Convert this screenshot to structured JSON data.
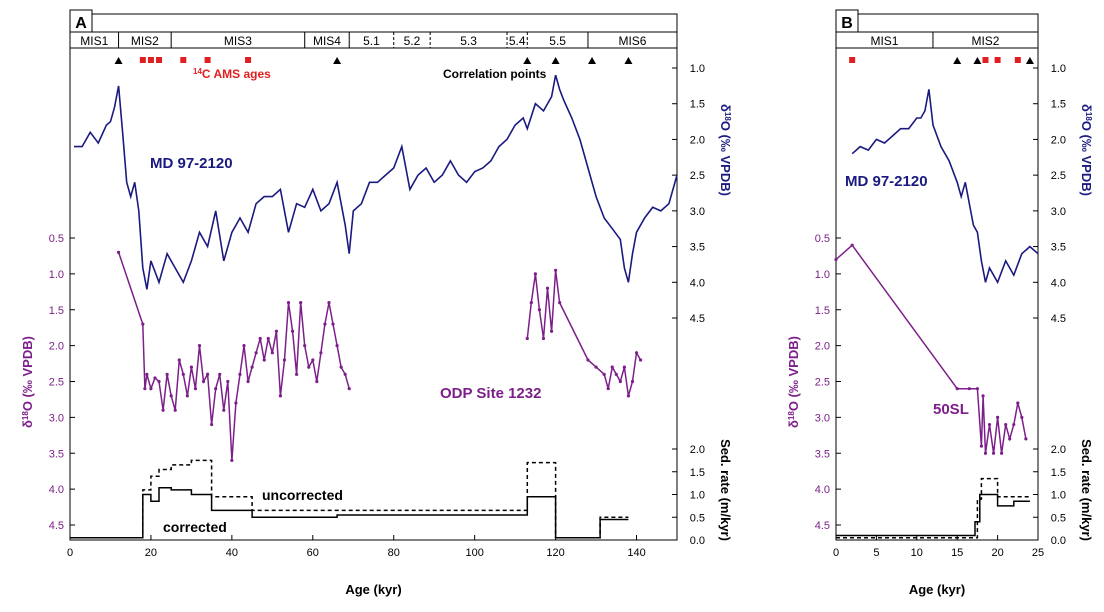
{
  "chart_data": [
    {
      "type": "line",
      "panel": "A",
      "xlabel": "Age (kyr)",
      "xlim": [
        0,
        150
      ],
      "x_ticks": [
        "0",
        "20",
        "40",
        "60",
        "80",
        "100",
        "120",
        "140"
      ],
      "stages": [
        {
          "label": "MIS1",
          "from": 0,
          "to": 12
        },
        {
          "label": "MIS2",
          "from": 12,
          "to": 25
        },
        {
          "label": "MIS3",
          "from": 25,
          "to": 58
        },
        {
          "label": "MIS4",
          "from": 58,
          "to": 69
        },
        {
          "label": "5.1",
          "from": 69,
          "to": 80
        },
        {
          "label": "5.2",
          "from": 80,
          "to": 89
        },
        {
          "label": "5.3",
          "from": 89,
          "to": 108
        },
        {
          "label": "5.4",
          "from": 108,
          "to": 113
        },
        {
          "label": "5.5",
          "from": 113,
          "to": 128
        },
        {
          "label": "MIS6",
          "from": 128,
          "to": 150
        }
      ],
      "c14_ages": [
        18,
        20,
        22,
        28,
        34,
        44
      ],
      "correlation_points": [
        12,
        66,
        113,
        120,
        129,
        138
      ],
      "annotation_c14": "C AMS ages",
      "annotation_c14_sup": "14",
      "annotation_corr": "Correlation points",
      "right_axis_top": {
        "label_pre": "δ",
        "label_sup": "18",
        "label_post": "O (‰ VPDB)",
        "ylim": [
          1.0,
          4.5
        ],
        "ticks": [
          "1.0",
          "1.5",
          "2.0",
          "2.5",
          "3.0",
          "3.5",
          "4.0",
          "4.5"
        ]
      },
      "left_axis": {
        "label_pre": "δ",
        "label_sup": "18",
        "label_post": "O (‰ VPDB)",
        "ylim": [
          0.5,
          4.5
        ],
        "ticks": [
          "0.5",
          "1.0",
          "1.5",
          "2.0",
          "2.5",
          "3.0",
          "3.5",
          "4.0",
          "4.5"
        ]
      },
      "right_axis_bottom": {
        "label": "Sed. rate (m/kyr)",
        "ylim": [
          0.0,
          2.0
        ],
        "ticks": [
          "0.0",
          "0.5",
          "1.0",
          "1.5",
          "2.0"
        ]
      },
      "series": [
        {
          "name": "MD 97-2120",
          "axis": "right_top",
          "color": "#1a1a80",
          "x": [
            1,
            3,
            5,
            7,
            9,
            10,
            11,
            12,
            13,
            14,
            15,
            16,
            17,
            18,
            19,
            20,
            22,
            24,
            26,
            28,
            30,
            32,
            34,
            36,
            38,
            40,
            42,
            44,
            46,
            48,
            50,
            52,
            54,
            56,
            58,
            60,
            62,
            64,
            66,
            68,
            69,
            70,
            72,
            74,
            76,
            78,
            80,
            82,
            84,
            86,
            88,
            90,
            92,
            94,
            96,
            98,
            100,
            102,
            104,
            106,
            108,
            110,
            112,
            113,
            115,
            117,
            119,
            120,
            121,
            122,
            124,
            126,
            128,
            130,
            132,
            134,
            136,
            137,
            138,
            139,
            140,
            142,
            144,
            146,
            148,
            150
          ],
          "values": [
            2.1,
            2.1,
            1.9,
            2.05,
            1.8,
            1.75,
            1.55,
            1.25,
            1.9,
            2.6,
            2.8,
            2.6,
            3.0,
            3.8,
            4.1,
            3.7,
            4.0,
            3.6,
            3.8,
            4.0,
            3.7,
            3.3,
            3.5,
            3.0,
            3.7,
            3.3,
            3.1,
            3.3,
            2.9,
            2.8,
            2.8,
            2.7,
            3.3,
            2.9,
            2.95,
            2.7,
            3.0,
            2.9,
            2.6,
            3.2,
            3.6,
            3.0,
            2.9,
            2.6,
            2.6,
            2.5,
            2.4,
            2.1,
            2.7,
            2.5,
            2.4,
            2.6,
            2.5,
            2.3,
            2.5,
            2.6,
            2.45,
            2.4,
            2.3,
            2.1,
            2.0,
            1.8,
            1.7,
            1.85,
            1.5,
            1.6,
            1.4,
            1.1,
            1.3,
            1.45,
            1.7,
            2.0,
            2.4,
            2.8,
            3.1,
            3.25,
            3.4,
            3.8,
            4.0,
            3.6,
            3.3,
            3.1,
            2.95,
            3.0,
            2.9,
            2.5
          ]
        },
        {
          "name": "ODP Site 1232",
          "axis": "left",
          "color": "#7d1f8a",
          "x": [
            12,
            18,
            18.5,
            19,
            20,
            21,
            22,
            23,
            24,
            25,
            26,
            27,
            28,
            29,
            30,
            31,
            32,
            33,
            34,
            35,
            36,
            37,
            38,
            39,
            40,
            41,
            42,
            43,
            44,
            45,
            46,
            47,
            48,
            49,
            50,
            51,
            52,
            53,
            54,
            55,
            56,
            57,
            58,
            59,
            60,
            61,
            62,
            63,
            64,
            65,
            66,
            67,
            68,
            69
          ],
          "values": [
            0.7,
            1.7,
            2.6,
            2.4,
            2.6,
            2.45,
            2.5,
            2.9,
            2.4,
            2.7,
            2.9,
            2.2,
            2.4,
            2.7,
            2.3,
            2.6,
            2.0,
            2.5,
            2.4,
            3.1,
            2.6,
            2.4,
            2.9,
            2.5,
            3.6,
            2.8,
            2.4,
            2.0,
            2.5,
            2.3,
            2.1,
            1.9,
            2.2,
            1.9,
            2.1,
            1.8,
            2.7,
            2.2,
            1.4,
            1.8,
            2.4,
            1.4,
            2.0,
            2.3,
            2.2,
            2.5,
            2.1,
            1.7,
            1.4,
            1.7,
            2.0,
            2.3,
            2.4,
            2.6
          ]
        },
        {
          "name": "ODP Site 1232 (late)",
          "axis": "left",
          "color": "#7d1f8a",
          "x": [
            113,
            114,
            115,
            116,
            117,
            118,
            119,
            120,
            121,
            128,
            130,
            132,
            133,
            134,
            135,
            136,
            137,
            138,
            139,
            140,
            141
          ],
          "values": [
            1.9,
            1.4,
            1.0,
            1.5,
            1.9,
            1.2,
            1.8,
            0.95,
            1.4,
            2.2,
            2.3,
            2.4,
            2.6,
            2.3,
            2.4,
            2.5,
            2.3,
            2.7,
            2.5,
            2.1,
            2.2
          ]
        },
        {
          "name": "uncorrected",
          "axis": "right_bottom",
          "color": "#000000",
          "dashed": true,
          "x": [
            0,
            18,
            18,
            20,
            20,
            22,
            22,
            25,
            25,
            30,
            30,
            35,
            35,
            45,
            45,
            113,
            113,
            120,
            120,
            131,
            131,
            138
          ],
          "values": [
            0.05,
            0.05,
            1.1,
            1.1,
            1.4,
            1.4,
            1.55,
            1.55,
            1.65,
            1.65,
            1.75,
            1.75,
            0.95,
            0.95,
            0.65,
            0.65,
            1.7,
            1.7,
            0.05,
            0.05,
            0.5,
            0.5
          ]
        },
        {
          "name": "corrected",
          "axis": "right_bottom",
          "color": "#000000",
          "dashed": false,
          "x": [
            0,
            18,
            18,
            20,
            20,
            22,
            22,
            25,
            25,
            30,
            30,
            35,
            35,
            45,
            45,
            66,
            66,
            113,
            113,
            120,
            120,
            131,
            131,
            138
          ],
          "values": [
            0.05,
            0.05,
            1.0,
            1.0,
            0.85,
            0.85,
            1.15,
            1.15,
            1.1,
            1.1,
            1.0,
            1.0,
            0.65,
            0.65,
            0.5,
            0.5,
            0.55,
            0.55,
            0.95,
            0.95,
            0.05,
            0.05,
            0.45,
            0.45
          ]
        }
      ],
      "labels": {
        "md": "MD 97-2120",
        "odp": "ODP Site 1232",
        "uncorrected": "uncorrected",
        "corrected": "corrected"
      }
    },
    {
      "type": "line",
      "panel": "B",
      "xlabel": "Age (kyr)",
      "xlim": [
        0,
        25
      ],
      "x_ticks": [
        "0",
        "5",
        "10",
        "15",
        "20",
        "25"
      ],
      "stages": [
        {
          "label": "MIS1",
          "from": 0,
          "to": 12
        },
        {
          "label": "MIS2",
          "from": 12,
          "to": 25
        }
      ],
      "c14_ages": [
        2,
        18.5,
        20,
        22.5
      ],
      "correlation_points": [
        15,
        17.5,
        24
      ],
      "right_axis_top": {
        "label_pre": "δ",
        "label_sup": "18",
        "label_post": "O (‰ VPDB)",
        "ylim": [
          1.0,
          4.5
        ],
        "ticks": [
          "1.0",
          "1.5",
          "2.0",
          "2.5",
          "3.0",
          "3.5",
          "4.0",
          "4.5"
        ]
      },
      "left_axis": {
        "label_pre": "δ",
        "label_sup": "18",
        "label_post": "O (‰ VPDB)",
        "ylim": [
          0.5,
          4.5
        ],
        "ticks": [
          "0.5",
          "1.0",
          "1.5",
          "2.0",
          "2.5",
          "3.0",
          "3.5",
          "4.0",
          "4.5"
        ]
      },
      "right_axis_bottom": {
        "label": "Sed. rate (m/kyr)",
        "ylim": [
          0.0,
          2.0
        ],
        "ticks": [
          "0.0",
          "0.5",
          "1.0",
          "1.5",
          "2.0"
        ]
      },
      "series": [
        {
          "name": "MD 97-2120",
          "axis": "right_top",
          "color": "#1a1a80",
          "x": [
            2,
            3,
            4,
            5,
            6,
            7,
            8,
            9,
            10,
            10.5,
            11,
            11.5,
            12,
            13,
            14,
            15,
            15.5,
            16,
            17,
            17.5,
            18,
            18.5,
            19,
            20,
            21,
            22,
            23,
            24,
            25
          ],
          "values": [
            2.2,
            2.1,
            2.15,
            2.0,
            2.05,
            1.95,
            1.85,
            1.85,
            1.7,
            1.7,
            1.6,
            1.3,
            1.8,
            2.1,
            2.3,
            2.6,
            2.8,
            2.6,
            3.2,
            3.3,
            3.7,
            4.0,
            3.8,
            4.0,
            3.7,
            3.9,
            3.6,
            3.5,
            3.6
          ]
        },
        {
          "name": "50SL",
          "axis": "left",
          "color": "#7d1f8a",
          "x": [
            0,
            2,
            15,
            16.5,
            17.5,
            18,
            18.2,
            18.5,
            19,
            19.5,
            20,
            20.5,
            21,
            21.5,
            22,
            22.5,
            23,
            23.5
          ],
          "values": [
            0.8,
            0.6,
            2.6,
            2.6,
            2.6,
            3.4,
            2.7,
            3.5,
            3.1,
            3.5,
            3.0,
            3.5,
            3.1,
            3.3,
            3.1,
            2.8,
            3.0,
            3.3
          ]
        },
        {
          "name": "uncorrected",
          "axis": "right_bottom",
          "color": "#000000",
          "dashed": true,
          "x": [
            0,
            17.5,
            17.5,
            18,
            18,
            20,
            20,
            24
          ],
          "values": [
            0.05,
            0.05,
            0.9,
            0.9,
            1.35,
            1.35,
            0.95,
            0.95
          ]
        },
        {
          "name": "corrected",
          "axis": "right_bottom",
          "color": "#000000",
          "dashed": false,
          "x": [
            0,
            17.2,
            17.2,
            17.8,
            17.8,
            20,
            20,
            22,
            22,
            24
          ],
          "values": [
            0.1,
            0.1,
            0.4,
            0.4,
            1.0,
            1.0,
            0.75,
            0.75,
            0.85,
            0.85
          ]
        }
      ],
      "labels": {
        "md": "MD 97-2120",
        "odp": "50SL"
      }
    }
  ],
  "colors": {
    "blue": "#1a1a80",
    "purple": "#7d1f8a",
    "red": "#e02020",
    "black": "#000000"
  }
}
